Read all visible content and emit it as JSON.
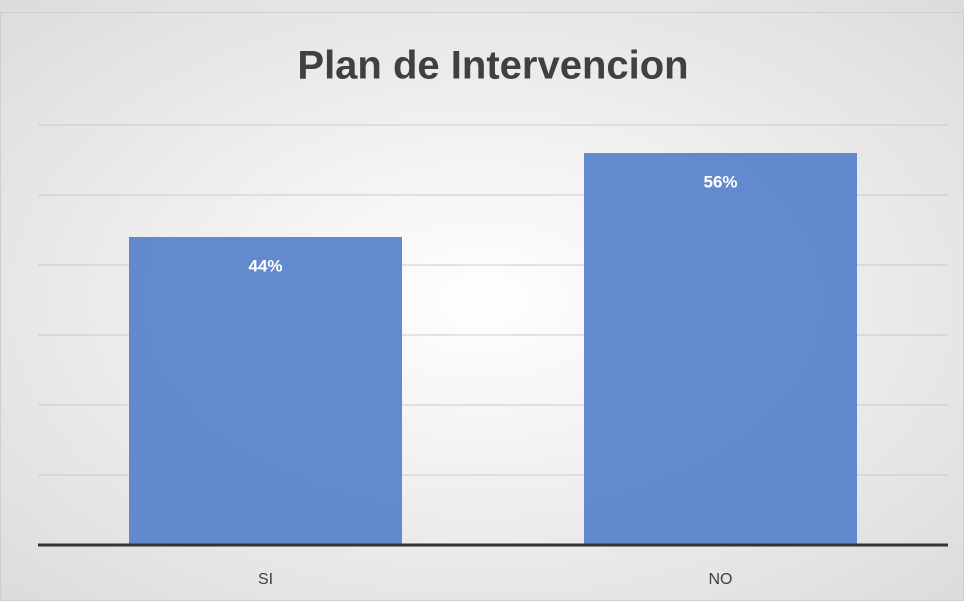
{
  "chart_data": {
    "type": "bar",
    "title": "Plan de Intervencion",
    "categories": [
      "SI",
      "NO"
    ],
    "values": [
      44,
      56
    ],
    "value_labels": [
      "44%",
      "56%"
    ],
    "color": "#5b84cc",
    "ylim": [
      0,
      60
    ],
    "yticks": [
      0,
      10,
      20,
      30,
      40,
      50,
      60
    ],
    "grid": true
  }
}
